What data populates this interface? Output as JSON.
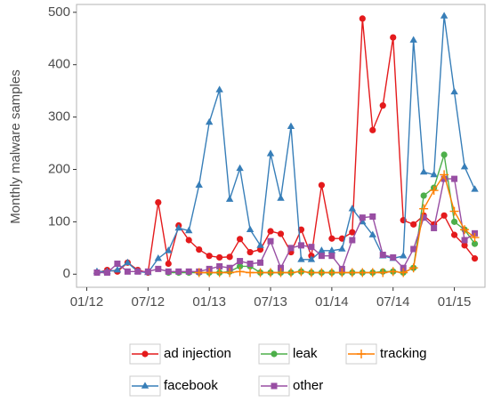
{
  "chart_data": {
    "type": "line",
    "y_label": "Monthly malware samples",
    "x": [
      "2012-02",
      "2012-03",
      "2012-04",
      "2012-05",
      "2012-06",
      "2012-07",
      "2012-08",
      "2012-09",
      "2012-10",
      "2012-11",
      "2012-12",
      "2013-01",
      "2013-02",
      "2013-03",
      "2013-04",
      "2013-05",
      "2013-06",
      "2013-07",
      "2013-08",
      "2013-09",
      "2013-10",
      "2013-11",
      "2013-12",
      "2014-01",
      "2014-02",
      "2014-03",
      "2014-04",
      "2014-05",
      "2014-06",
      "2014-07",
      "2014-08",
      "2014-09",
      "2014-10",
      "2014-11",
      "2014-12",
      "2015-01",
      "2015-02",
      "2015-03"
    ],
    "xlim": [
      "2011-12",
      "2015-04"
    ],
    "xticks": [
      {
        "value": "2012-01",
        "label": "01/12"
      },
      {
        "value": "2012-07",
        "label": "07/12"
      },
      {
        "value": "2013-01",
        "label": "01/13"
      },
      {
        "value": "2013-07",
        "label": "07/13"
      },
      {
        "value": "2014-01",
        "label": "01/14"
      },
      {
        "value": "2014-07",
        "label": "07/14"
      },
      {
        "value": "2015-01",
        "label": "01/15"
      }
    ],
    "ylim": [
      -25,
      515
    ],
    "yticks": [
      0,
      100,
      200,
      300,
      400,
      500
    ],
    "legend": "bottom",
    "series": [
      {
        "name": "ad injection",
        "color": "#e41a1c",
        "marker": "circle",
        "values": [
          3,
          8,
          5,
          22,
          8,
          3,
          137,
          20,
          93,
          65,
          47,
          35,
          32,
          33,
          67,
          42,
          47,
          82,
          77,
          42,
          85,
          35,
          170,
          68,
          68,
          80,
          488,
          275,
          322,
          452,
          103,
          95,
          112,
          95,
          112,
          75,
          55,
          30
        ]
      },
      {
        "name": "facebook",
        "color": "#377eb8",
        "marker": "triangle",
        "values": [
          5,
          5,
          8,
          22,
          5,
          3,
          30,
          45,
          88,
          83,
          170,
          290,
          352,
          143,
          202,
          85,
          55,
          230,
          145,
          282,
          28,
          28,
          45,
          45,
          48,
          125,
          100,
          75,
          35,
          30,
          35,
          447,
          195,
          190,
          493,
          348,
          205,
          162
        ]
      },
      {
        "name": "leak",
        "color": "#4daf4a",
        "marker": "circle",
        "values": [
          null,
          null,
          null,
          null,
          null,
          null,
          null,
          3,
          3,
          3,
          3,
          3,
          3,
          5,
          15,
          15,
          3,
          3,
          3,
          3,
          5,
          3,
          3,
          3,
          3,
          3,
          3,
          3,
          5,
          5,
          3,
          12,
          150,
          165,
          228,
          100,
          85,
          58
        ]
      },
      {
        "name": "other",
        "color": "#984ea3",
        "marker": "square",
        "values": [
          3,
          3,
          20,
          5,
          5,
          5,
          10,
          5,
          5,
          5,
          5,
          10,
          15,
          12,
          25,
          20,
          22,
          63,
          12,
          50,
          55,
          52,
          35,
          35,
          10,
          65,
          108,
          110,
          37,
          32,
          12,
          48,
          108,
          88,
          182,
          182,
          65,
          78
        ]
      },
      {
        "name": "tracking",
        "color": "#ff7f00",
        "marker": "plus",
        "values": [
          null,
          null,
          null,
          null,
          null,
          null,
          null,
          null,
          null,
          null,
          3,
          3,
          3,
          3,
          5,
          3,
          3,
          3,
          3,
          3,
          5,
          3,
          3,
          3,
          3,
          3,
          3,
          3,
          3,
          5,
          3,
          12,
          125,
          160,
          190,
          120,
          85,
          70
        ]
      }
    ]
  }
}
